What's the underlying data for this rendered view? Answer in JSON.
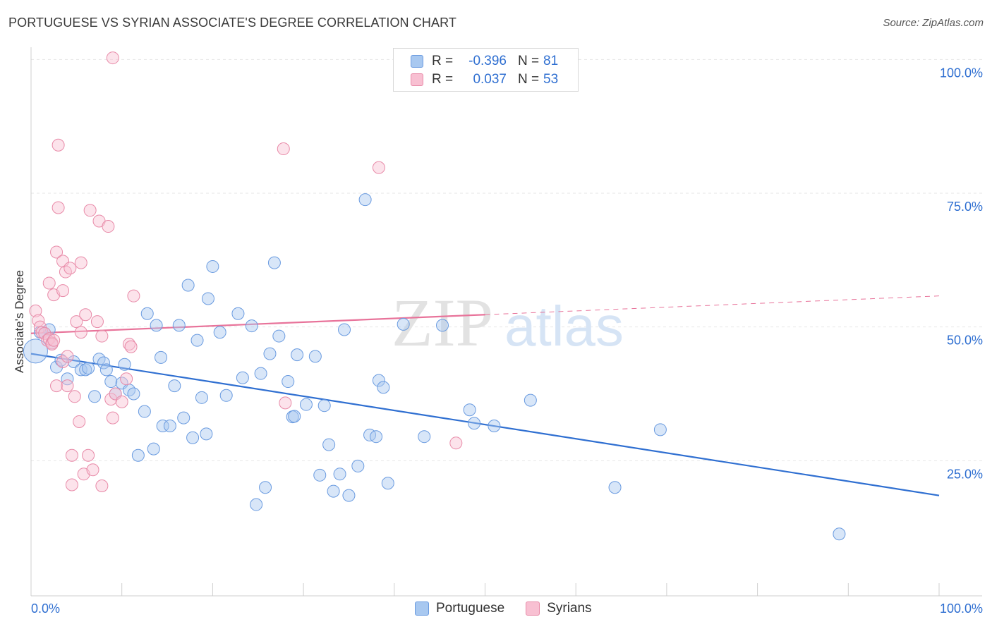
{
  "title": "PORTUGUESE VS SYRIAN ASSOCIATE'S DEGREE CORRELATION CHART",
  "source": "Source: ZipAtlas.com",
  "watermark": {
    "zip": "ZIP",
    "atlas": "atlas"
  },
  "legend": {
    "rows": [
      {
        "r_label": "R =",
        "r_value": "-0.396",
        "n_label": "N =",
        "n_value": "81",
        "color": "#a8c8f0",
        "border": "#6a9be0"
      },
      {
        "r_label": "R =",
        "r_value": "0.037",
        "n_label": "N =",
        "n_value": "53",
        "color": "#f8c0d2",
        "border": "#e88aa8"
      }
    ]
  },
  "bottom_legend": [
    {
      "label": "Portuguese",
      "color": "#a8c8f0",
      "border": "#6a9be0"
    },
    {
      "label": "Syrians",
      "color": "#f8c0d2",
      "border": "#e88aa8"
    }
  ],
  "chart_data": {
    "type": "scatter",
    "title": "PORTUGUESE VS SYRIAN ASSOCIATE'S DEGREE CORRELATION CHART",
    "xlabel": "",
    "ylabel": "Associate's Degree",
    "xlim": [
      0,
      100
    ],
    "ylim": [
      0,
      100
    ],
    "x_tick_labels": {
      "left": "0.0%",
      "right": "100.0%"
    },
    "y_ticks": [
      {
        "value": 100,
        "label": "100.0%"
      },
      {
        "value": 75,
        "label": "75.0%"
      },
      {
        "value": 50,
        "label": "50.0%"
      },
      {
        "value": 25,
        "label": "25.0%"
      }
    ],
    "colors": {
      "portuguese": "#2f6fd1",
      "syrians": "#e8739a"
    },
    "series": [
      {
        "name": "Portuguese",
        "trend": {
          "x0": 0,
          "y0": 45.0,
          "x1": 100,
          "y1": 18.5,
          "dashed_from": null
        },
        "points": [
          [
            0.5,
            45.5
          ],
          [
            1.5,
            48.8
          ],
          [
            2.0,
            49.5
          ],
          [
            2.3,
            47.0
          ],
          [
            2.8,
            42.5
          ],
          [
            3.3,
            43.8
          ],
          [
            4.0,
            40.3
          ],
          [
            4.7,
            43.5
          ],
          [
            5.5,
            42.0
          ],
          [
            6.0,
            42.0
          ],
          [
            6.3,
            42.3
          ],
          [
            7.0,
            37.0
          ],
          [
            7.5,
            44.0
          ],
          [
            8.0,
            43.3
          ],
          [
            8.3,
            42.0
          ],
          [
            8.8,
            39.8
          ],
          [
            9.3,
            37.5
          ],
          [
            10.0,
            39.5
          ],
          [
            10.3,
            43.0
          ],
          [
            10.8,
            38.2
          ],
          [
            11.3,
            37.5
          ],
          [
            11.8,
            26.0
          ],
          [
            12.5,
            34.2
          ],
          [
            12.8,
            52.5
          ],
          [
            13.5,
            27.2
          ],
          [
            13.8,
            50.3
          ],
          [
            14.3,
            44.3
          ],
          [
            14.5,
            31.5
          ],
          [
            15.3,
            31.5
          ],
          [
            15.8,
            39.0
          ],
          [
            16.3,
            50.3
          ],
          [
            16.8,
            33.0
          ],
          [
            17.3,
            57.8
          ],
          [
            17.8,
            29.3
          ],
          [
            18.3,
            47.5
          ],
          [
            18.8,
            36.8
          ],
          [
            19.3,
            30.0
          ],
          [
            19.5,
            55.3
          ],
          [
            20.0,
            61.3
          ],
          [
            20.8,
            49.0
          ],
          [
            21.5,
            37.2
          ],
          [
            22.8,
            52.5
          ],
          [
            23.3,
            40.5
          ],
          [
            24.3,
            50.2
          ],
          [
            24.8,
            16.8
          ],
          [
            25.3,
            41.3
          ],
          [
            25.8,
            20.0
          ],
          [
            26.3,
            45.0
          ],
          [
            26.8,
            62.0
          ],
          [
            27.3,
            48.3
          ],
          [
            28.3,
            39.8
          ],
          [
            28.8,
            33.2
          ],
          [
            29.0,
            33.3
          ],
          [
            29.3,
            44.8
          ],
          [
            30.3,
            35.5
          ],
          [
            31.3,
            44.5
          ],
          [
            31.8,
            22.3
          ],
          [
            32.3,
            35.3
          ],
          [
            32.8,
            28.0
          ],
          [
            33.3,
            19.3
          ],
          [
            34.0,
            22.5
          ],
          [
            34.5,
            49.5
          ],
          [
            35.0,
            18.5
          ],
          [
            36.0,
            24.0
          ],
          [
            36.8,
            73.8
          ],
          [
            37.3,
            29.8
          ],
          [
            38.0,
            29.5
          ],
          [
            38.3,
            40.0
          ],
          [
            38.8,
            38.7
          ],
          [
            39.3,
            20.8
          ],
          [
            41.0,
            50.5
          ],
          [
            43.3,
            29.5
          ],
          [
            45.3,
            50.3
          ],
          [
            48.3,
            34.5
          ],
          [
            48.8,
            32.0
          ],
          [
            51.0,
            31.5
          ],
          [
            55.0,
            36.3
          ],
          [
            64.3,
            20.0
          ],
          [
            69.3,
            30.8
          ],
          [
            89.0,
            11.3
          ],
          [
            1.0,
            49.0
          ]
        ]
      },
      {
        "name": "Syrians",
        "trend": {
          "x0": 0,
          "y0": 48.8,
          "x1": 50,
          "y1": 52.3,
          "dashed_from": 50,
          "dashed_x1": 100,
          "dashed_y1": 55.8
        },
        "points": [
          [
            0.5,
            53.0
          ],
          [
            0.8,
            51.2
          ],
          [
            1.0,
            50.0
          ],
          [
            1.2,
            49.0
          ],
          [
            1.5,
            48.8
          ],
          [
            1.8,
            47.5
          ],
          [
            2.0,
            47.8
          ],
          [
            2.3,
            47.0
          ],
          [
            2.0,
            58.2
          ],
          [
            2.3,
            46.8
          ],
          [
            2.5,
            47.5
          ],
          [
            2.5,
            56.0
          ],
          [
            2.8,
            64.0
          ],
          [
            2.8,
            39.0
          ],
          [
            3.0,
            84.0
          ],
          [
            3.0,
            72.3
          ],
          [
            3.5,
            56.8
          ],
          [
            3.5,
            43.5
          ],
          [
            3.5,
            62.3
          ],
          [
            3.8,
            60.3
          ],
          [
            4.0,
            44.5
          ],
          [
            4.0,
            39.0
          ],
          [
            4.3,
            61.0
          ],
          [
            4.5,
            26.0
          ],
          [
            4.5,
            20.5
          ],
          [
            4.8,
            37.0
          ],
          [
            5.0,
            51.0
          ],
          [
            5.3,
            32.3
          ],
          [
            5.5,
            62.0
          ],
          [
            5.5,
            49.0
          ],
          [
            5.8,
            22.5
          ],
          [
            6.0,
            52.3
          ],
          [
            6.3,
            26.0
          ],
          [
            6.5,
            71.8
          ],
          [
            6.8,
            23.3
          ],
          [
            7.3,
            51.0
          ],
          [
            7.5,
            69.8
          ],
          [
            7.8,
            48.3
          ],
          [
            7.8,
            20.3
          ],
          [
            8.5,
            68.8
          ],
          [
            8.8,
            36.5
          ],
          [
            9.0,
            33.0
          ],
          [
            9.3,
            37.5
          ],
          [
            10.0,
            36.0
          ],
          [
            10.5,
            40.3
          ],
          [
            10.8,
            46.8
          ],
          [
            11.0,
            46.3
          ],
          [
            11.3,
            55.8
          ],
          [
            27.8,
            83.3
          ],
          [
            28.0,
            35.8
          ],
          [
            38.3,
            79.8
          ],
          [
            46.8,
            28.3
          ],
          [
            9.0,
            100.3
          ]
        ]
      }
    ]
  }
}
